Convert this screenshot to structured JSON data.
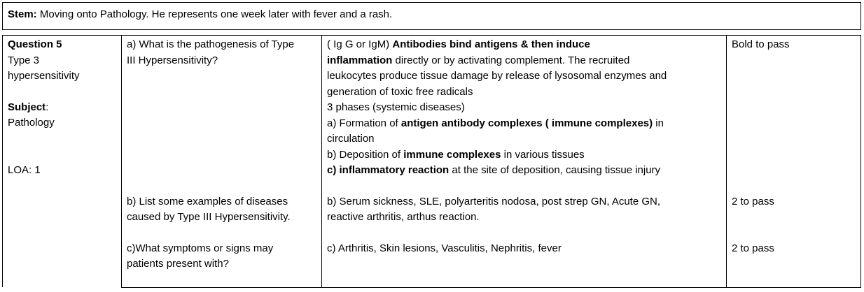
{
  "stem": {
    "label": "Stem:",
    "text": " Moving onto Pathology. He represents one week later with fever and a rash."
  },
  "left": {
    "question": "Question 5",
    "topic_line1": "Type 3",
    "topic_line2": "hypersensitivity",
    "subject_label": "Subject",
    "subject_colon": ":",
    "subject_value": "Pathology",
    "loa": "LOA: 1"
  },
  "rows": [
    {
      "question_line1": "a) What is the pathogenesis of Type",
      "question_line2": "III Hypersensitivity?",
      "pass": "Bold to pass"
    },
    {
      "question_line1": "b) List some examples of diseases",
      "question_line2": "caused by Type III Hypersensitivity.",
      "answer_line1": "b) Serum sickness, SLE, polyarteritis nodosa, post strep GN, Acute GN,",
      "answer_line2": "reactive arthritis, arthus reaction.",
      "pass": "2 to pass"
    },
    {
      "question_line1": "c)What symptoms or signs may",
      "question_line2": "patients present with?",
      "answer_line1": "c) Arthritis, Skin lesions, Vasculitis, Nephritis, fever",
      "pass": "2 to pass"
    }
  ],
  "answer_a": {
    "l1_plain": "( Ig G  or IgM) ",
    "l1_bold": "Antibodies bind antigens & then induce",
    "l2_bold": "inflammation",
    "l2_plain": " directly or by activating complement. The recruited",
    "l3": "leukocytes produce tissue damage by release of lysosomal enzymes and",
    "l4": "generation of toxic free radicals",
    "l5": "3 phases (systemic diseases)",
    "l6_plain": "a) Formation of ",
    "l6_bold": "antigen antibody complexes ( immune complexes)",
    "l6_tail": " in",
    "l7": "circulation",
    "l8_plain": "b) Deposition of ",
    "l8_bold": "immune complexes",
    "l8_tail": " in various tissues",
    "l9_bold": "c) inflammatory reaction",
    "l9_plain": " at the site of deposition, causing tissue injury"
  }
}
